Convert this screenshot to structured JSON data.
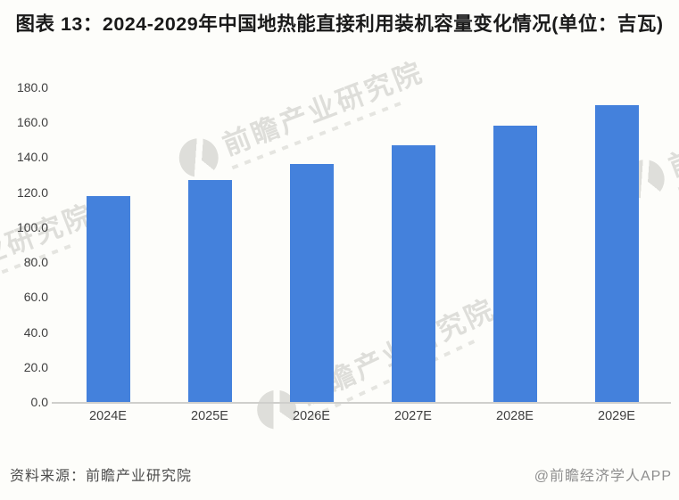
{
  "title": "图表 13：2024-2029年中国地热能直接利用装机容量变化情况(单位：吉瓦)",
  "chart_data": {
    "type": "bar",
    "title": "2024-2029年中国地热能直接利用装机容量变化情况",
    "figure_label": "图表 13",
    "unit": "吉瓦",
    "categories": [
      "2024E",
      "2025E",
      "2026E",
      "2027E",
      "2028E",
      "2029E"
    ],
    "values": [
      118,
      127,
      136,
      147,
      158,
      170
    ],
    "ylim": [
      0,
      180
    ],
    "ytick_step": 20,
    "ytick_labels": [
      "180.0",
      "160.0",
      "140.0",
      "120.0",
      "100.0",
      "80.0",
      "60.0",
      "40.0",
      "20.0",
      "0.0"
    ],
    "xlabel": "",
    "ylabel": "",
    "bar_color": "#4481DC",
    "grid": false,
    "legend": "none"
  },
  "footer": {
    "source": "资料来源：前瞻产业研究院",
    "credit": "@前瞻经济学人APP"
  },
  "watermark": {
    "text": "前瞻产业研究院"
  }
}
